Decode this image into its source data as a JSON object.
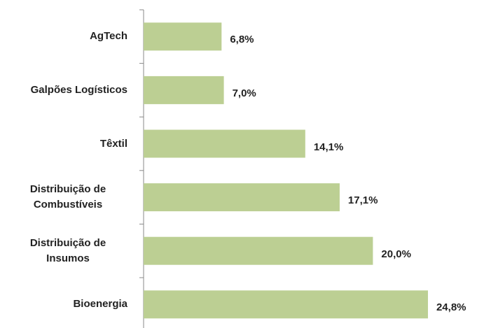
{
  "chart_data": {
    "type": "bar",
    "orientation": "horizontal",
    "categories": [
      "AgTech",
      "Galpões Logísticos",
      "Têxtil",
      "Distribuição de Combustíveis",
      "Distribuição de Insumos",
      "Bioenergia"
    ],
    "values": [
      6.8,
      7.0,
      14.1,
      17.1,
      20.0,
      24.8
    ],
    "value_labels": [
      "6,8%",
      "7,0%",
      "14,1%",
      "17,1%",
      "20,0%",
      "24,8%"
    ],
    "color": "#bccf93"
  }
}
